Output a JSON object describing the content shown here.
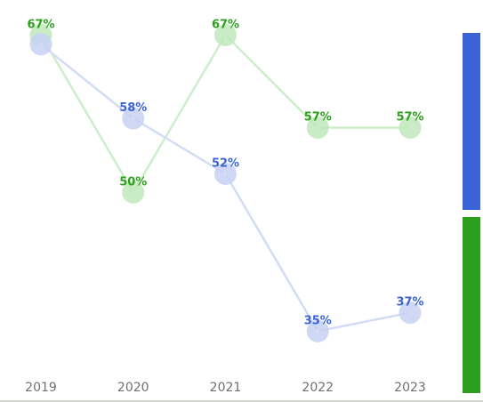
{
  "chart_data": {
    "type": "line",
    "categories": [
      "2019",
      "2020",
      "2021",
      "2022",
      "2023"
    ],
    "series": [
      {
        "values": [
          67,
          50,
          67,
          57,
          57
        ],
        "color": "#2ca01c",
        "line_color": "#cdeecb",
        "marker_color": "#bfe8bb"
      },
      {
        "values": [
          66,
          58,
          52,
          35,
          37
        ],
        "color": "#3b63d6",
        "line_color": "#d3dcf4",
        "marker_color": "#c7d2f4"
      }
    ],
    "value_suffix": "%",
    "data_labels": [
      [
        "67%",
        "50%",
        "67%",
        "57%",
        "57%"
      ],
      [
        "",
        "58%",
        "52%",
        "35%",
        "37%"
      ]
    ],
    "ylim": [
      31,
      68
    ],
    "grid": false,
    "legend": "right",
    "legend_swatches": [
      "#3b63d6",
      "#2ca01c"
    ]
  }
}
